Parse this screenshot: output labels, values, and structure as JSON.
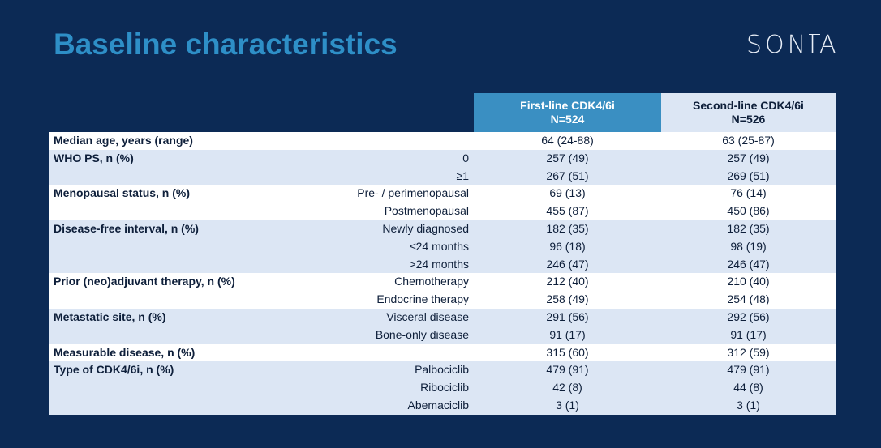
{
  "slide": {
    "title": "Baseline characteristics",
    "logo": "SONIA"
  },
  "table": {
    "headers": {
      "first": "First-line CDK4/6i",
      "first_n": "N=524",
      "second": "Second-line CDK4/6i",
      "second_n": "N=526"
    },
    "rows": [
      {
        "label": "Median age, years (range)",
        "sub": "",
        "first": "64 (24-88)",
        "second": "63 (25-87)",
        "shade": "white"
      },
      {
        "label": "WHO PS, n (%)",
        "sub": "0",
        "first": "257 (49)",
        "second": "257 (49)",
        "shade": "blue"
      },
      {
        "label": "",
        "sub": "≥1",
        "first": "267 (51)",
        "second": "269 (51)",
        "shade": "blue"
      },
      {
        "label": "Menopausal status, n (%)",
        "sub": "Pre- / perimenopausal",
        "first": "69 (13)",
        "second": "76 (14)",
        "shade": "white"
      },
      {
        "label": "",
        "sub": "Postmenopausal",
        "first": "455 (87)",
        "second": "450 (86)",
        "shade": "white"
      },
      {
        "label": "Disease-free interval, n (%)",
        "sub": "Newly diagnosed",
        "first": "182 (35)",
        "second": "182 (35)",
        "shade": "blue"
      },
      {
        "label": "",
        "sub": "≤24 months",
        "first": "96 (18)",
        "second": "98 (19)",
        "shade": "blue"
      },
      {
        "label": "",
        "sub": ">24 months",
        "first": "246 (47)",
        "second": "246 (47)",
        "shade": "blue"
      },
      {
        "label": "Prior (neo)adjuvant therapy, n (%)",
        "sub": "Chemotherapy",
        "first": "212 (40)",
        "second": "210 (40)",
        "shade": "white"
      },
      {
        "label": "",
        "sub": "Endocrine therapy",
        "first": "258 (49)",
        "second": "254 (48)",
        "shade": "white"
      },
      {
        "label": "Metastatic site, n (%)",
        "sub": "Visceral disease",
        "first": "291 (56)",
        "second": "292 (56)",
        "shade": "blue"
      },
      {
        "label": "",
        "sub": "Bone-only disease",
        "first": "91 (17)",
        "second": "91 (17)",
        "shade": "blue"
      },
      {
        "label": "Measurable disease, n (%)",
        "sub": "",
        "first": "315 (60)",
        "second": "312 (59)",
        "shade": "white"
      },
      {
        "label": "Type of CDK4/6i, n (%)",
        "sub": "Palbociclib",
        "first": "479 (91)",
        "second": "479 (91)",
        "shade": "blue"
      },
      {
        "label": "",
        "sub": "Ribociclib",
        "first": "42 (8)",
        "second": "44 (8)",
        "shade": "blue"
      },
      {
        "label": "",
        "sub": "Abemaciclib",
        "first": "3 (1)",
        "second": "3 (1)",
        "shade": "blue"
      }
    ]
  }
}
